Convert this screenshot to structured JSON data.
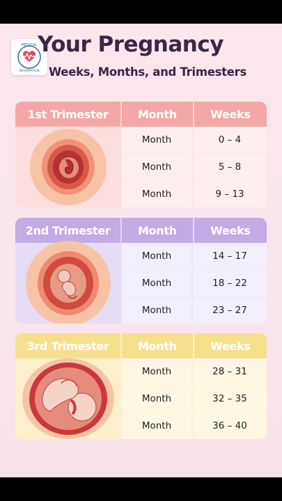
{
  "header": {
    "title": "Your Pregnancy",
    "subtitle": "Weeks, Months, and Trimesters",
    "logo_text_top": "MEDICAL",
    "logo_text_bottom": "INFORMATION"
  },
  "colors": {
    "title": "#3a2748",
    "trimester1": "#f4a7a7",
    "trimester2": "#c3abe6",
    "trimester3": "#f5e08e"
  },
  "trimesters": [
    {
      "label": "1st Trimester",
      "col_month": "Month",
      "col_weeks": "Weeks",
      "rows": [
        {
          "month": "Month",
          "weeks": "0 – 4"
        },
        {
          "month": "Month",
          "weeks": "5 – 8"
        },
        {
          "month": "Month",
          "weeks": "9 – 13"
        }
      ]
    },
    {
      "label": "2nd Trimester",
      "col_month": "Month",
      "col_weeks": "Weeks",
      "rows": [
        {
          "month": "Month",
          "weeks": "14 – 17"
        },
        {
          "month": "Month",
          "weeks": "18 – 22"
        },
        {
          "month": "Month",
          "weeks": "23 – 27"
        }
      ]
    },
    {
      "label": "3rd Trimester",
      "col_month": "Month",
      "col_weeks": "Weeks",
      "rows": [
        {
          "month": "Month",
          "weeks": "28 – 31"
        },
        {
          "month": "Month",
          "weeks": "32 – 35"
        },
        {
          "month": "Month",
          "weeks": "36 – 40"
        }
      ]
    }
  ]
}
